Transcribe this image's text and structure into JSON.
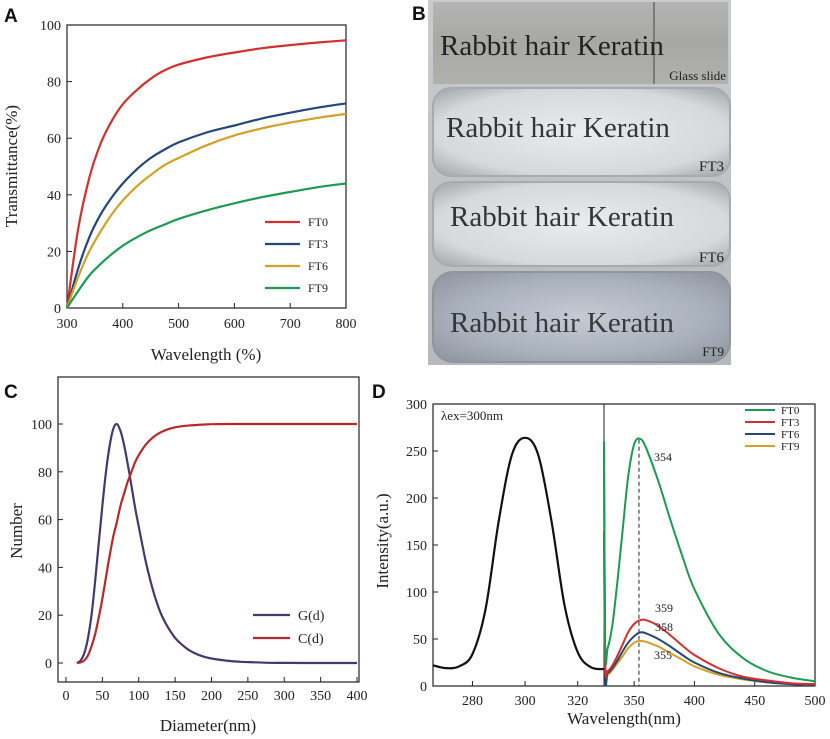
{
  "panels": [
    {
      "letter": "A"
    },
    {
      "letter": "B"
    },
    {
      "letter": "C"
    },
    {
      "letter": "D"
    }
  ],
  "chart_data": [
    {
      "id": "A",
      "type": "line",
      "xlabel": "Wavelength (%)",
      "ylabel": "Transmittance(%)",
      "xlim": [
        300,
        800
      ],
      "ylim": [
        0,
        100
      ],
      "xticks": [
        300,
        400,
        500,
        600,
        700,
        800
      ],
      "yticks": [
        0,
        20,
        40,
        60,
        80,
        100
      ],
      "legend_position": "bottom-right",
      "x": [
        300,
        320,
        340,
        360,
        380,
        400,
        425,
        450,
        475,
        500,
        550,
        600,
        650,
        700,
        750,
        800
      ],
      "series": [
        {
          "name": "FT0",
          "color": "#d0312d",
          "values": [
            0,
            28,
            46,
            58,
            66,
            72,
            77,
            81,
            84,
            86,
            88.5,
            90.3,
            91.8,
            92.9,
            93.8,
            94.6
          ]
        },
        {
          "name": "FT3",
          "color": "#23477a",
          "values": [
            0,
            14,
            25,
            33,
            39,
            44,
            49,
            53,
            56,
            58.5,
            62,
            64.5,
            67,
            69,
            70.8,
            72.3
          ]
        },
        {
          "name": "FT6",
          "color": "#d4a124",
          "values": [
            0,
            11,
            20,
            27,
            33,
            38,
            43,
            47,
            50.5,
            53,
            57.5,
            61,
            63.5,
            65.5,
            67.2,
            68.6
          ]
        },
        {
          "name": "FT9",
          "color": "#1e9a52",
          "values": [
            0,
            6,
            11.5,
            15.5,
            19,
            22,
            25,
            27.5,
            29.5,
            31.5,
            34.5,
            37,
            39.2,
            41,
            42.7,
            44
          ]
        }
      ]
    },
    {
      "id": "C",
      "type": "line",
      "xlabel": "Diameter(nm)",
      "ylabel": "Number",
      "xlim": [
        0,
        400
      ],
      "ylim": [
        0,
        110
      ],
      "xticks": [
        0,
        50,
        100,
        150,
        200,
        250,
        300,
        350,
        400
      ],
      "yticks": [
        0,
        20,
        40,
        60,
        80,
        100
      ],
      "legend_position": "bottom-right",
      "x": [
        15,
        20,
        25,
        30,
        35,
        40,
        45,
        50,
        55,
        60,
        65,
        70,
        75,
        80,
        85,
        90,
        95,
        100,
        110,
        120,
        130,
        140,
        150,
        160,
        170,
        180,
        190,
        200,
        220,
        240,
        260,
        280,
        300,
        350,
        400
      ],
      "series": [
        {
          "name": "G(d)",
          "color": "#45386e",
          "values": [
            0,
            1,
            4,
            10,
            20,
            34,
            50,
            66,
            80,
            91,
            98,
            100,
            97,
            91,
            83,
            74,
            65,
            57,
            42,
            30,
            21,
            15,
            10.5,
            7.5,
            5.2,
            3.7,
            2.6,
            1.9,
            1.0,
            0.5,
            0.3,
            0.1,
            0.05,
            0,
            0
          ]
        },
        {
          "name": "C(d)",
          "color": "#b52a2a",
          "values": [
            0,
            0.2,
            1,
            3,
            7,
            12,
            19,
            27,
            36,
            45,
            53,
            59,
            66,
            71,
            76,
            80,
            84,
            87,
            91.5,
            94.5,
            96.5,
            97.8,
            98.6,
            99.1,
            99.4,
            99.6,
            99.8,
            99.9,
            100,
            100,
            100,
            100,
            100,
            100,
            100
          ]
        }
      ]
    },
    {
      "id": "D",
      "type": "line",
      "xlabel": "Wavelength(nm)",
      "ylabel": "Intensity(a.u.)",
      "ylim": [
        0,
        300
      ],
      "yticks": [
        0,
        50,
        100,
        150,
        200,
        250,
        300
      ],
      "left_subplot": {
        "xlim": [
          265,
          330
        ],
        "xticks": [
          280,
          300,
          320
        ],
        "label": "λex=300nm",
        "x": [
          265,
          270,
          275,
          280,
          285,
          290,
          295,
          300,
          305,
          310,
          315,
          320,
          325,
          330
        ],
        "values": [
          22,
          19,
          21,
          34,
          82,
          176,
          246,
          264,
          246,
          176,
          86,
          36,
          20,
          18
        ],
        "color": "#111111"
      },
      "right_subplot": {
        "xlim": [
          325,
          500
        ],
        "xticks": [
          350,
          400,
          450,
          500
        ],
        "x": [
          325,
          326,
          328,
          332,
          336,
          340,
          345,
          350,
          355,
          360,
          370,
          380,
          390,
          400,
          420,
          440,
          460,
          480,
          500
        ],
        "series": [
          {
            "name": "FT0",
            "color": "#1e9a52",
            "peak": "354",
            "values": [
              260,
              40,
              40,
              65,
              110,
              160,
              222,
              257,
              263,
              253,
              218,
              177,
              138,
              103,
              56,
              30,
              16,
              9,
              5
            ]
          },
          {
            "name": "FT3",
            "color": "#d0312d",
            "peak": "359",
            "values": [
              165,
              22,
              16,
              22,
              32,
              43,
              57,
              66,
              70,
              70,
              64,
              54,
              43,
              33,
              19,
              10,
              6,
              3,
              2
            ]
          },
          {
            "name": "FT6",
            "color": "#23477a",
            "peak": "358",
            "values": [
              255,
              20,
              14,
              19,
              27,
              36,
              46,
              53,
              57,
              56,
              50,
              42,
              33,
              25,
              14,
              8,
              4,
              2,
              1
            ]
          },
          {
            "name": "FT9",
            "color": "#d4a124",
            "peak": "355",
            "values": [
              160,
              18,
              12,
              17,
              24,
              31,
              40,
              46,
              48,
              47,
              42,
              35,
              28,
              21,
              12,
              7,
              4,
              2,
              1
            ]
          }
        ],
        "dashed_line_x": 354,
        "legend_position": "top-right"
      }
    }
  ],
  "photo": {
    "strips": [
      {
        "text": "Rabbit hair Keratin",
        "caption": "Glass slide"
      },
      {
        "text": "Rabbit hair Keratin",
        "caption": "FT3"
      },
      {
        "text": "Rabbit hair Keratin",
        "caption": "FT6"
      },
      {
        "text": "Rabbit hair Keratin",
        "caption": "FT9"
      }
    ]
  }
}
